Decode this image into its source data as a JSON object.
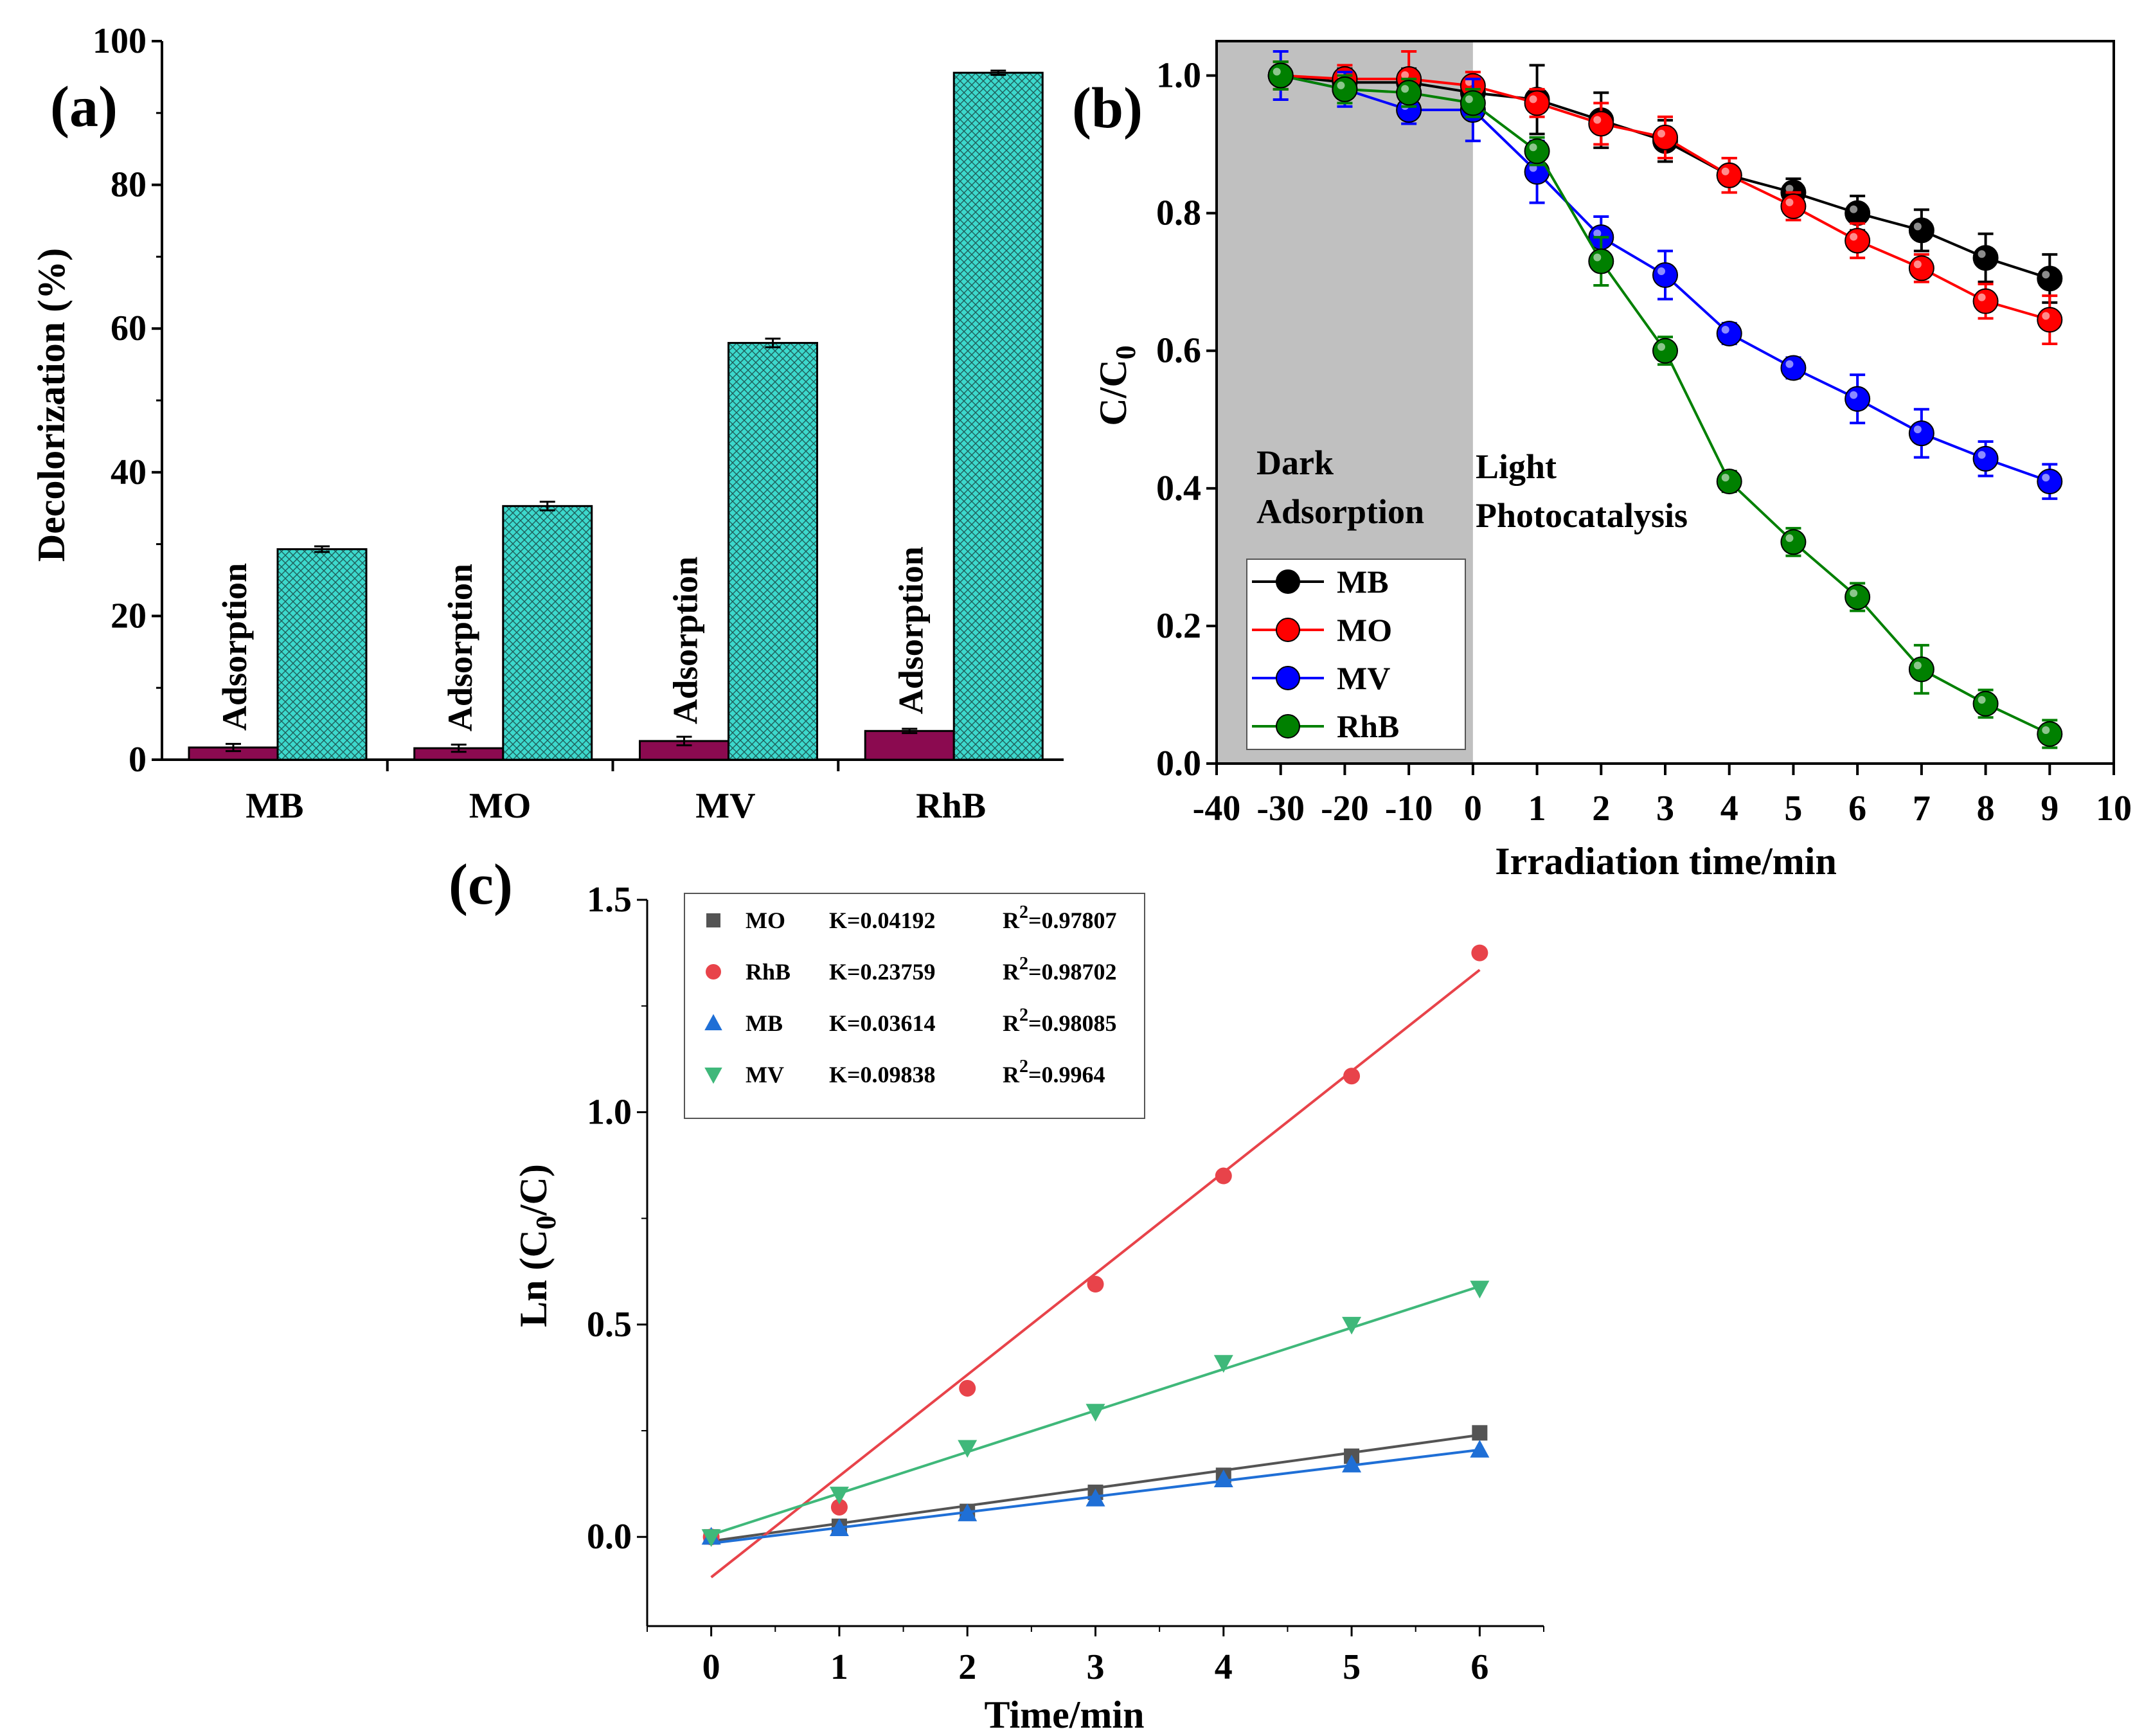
{
  "colors": {
    "MB": "#000000",
    "MO": "#ff0000",
    "MV": "#0000ff",
    "RhB": "#008000",
    "adsorption_bar": "#8b0a50",
    "photocatalysis_bar": "#3cd8cc",
    "dark_region": "#c0c0c0",
    "c_MO": "#545454",
    "c_RhB": "#e8434a",
    "c_MB": "#1f6fd6",
    "c_MV": "#3fb87a"
  },
  "chart_data": [
    {
      "panel": "(a)",
      "type": "bar",
      "categories": [
        "MB",
        "MO",
        "MV",
        "RhB"
      ],
      "series": [
        {
          "name": "Adsorption",
          "values": [
            1.7,
            1.6,
            2.6,
            4.0
          ],
          "err": [
            0.5,
            0.5,
            0.6,
            0.3
          ],
          "pattern": "solid"
        },
        {
          "values": [
            29.3,
            35.3,
            58.0,
            95.6
          ],
          "err": [
            0.4,
            0.6,
            0.6,
            0.3
          ],
          "pattern": "crosshatch"
        }
      ],
      "bar_annotations": [
        "Adsorption",
        "Adsorption",
        "Adsorption",
        "Adsorption"
      ],
      "ylabel": "Decolorization (%)",
      "ylim": [
        0,
        100
      ],
      "yticks": [
        "0",
        "20",
        "40",
        "60",
        "80",
        "100"
      ]
    },
    {
      "panel": "(b)",
      "type": "line",
      "x": [
        "-30",
        "-20",
        "-10",
        "0",
        "1",
        "2",
        "3",
        "4",
        "5",
        "6",
        "7",
        "8",
        "9"
      ],
      "x_ticks": [
        "-40",
        "-30",
        "-20",
        "-10",
        "0",
        "1",
        "2",
        "3",
        "4",
        "5",
        "6",
        "7",
        "8",
        "9",
        "10"
      ],
      "series": [
        {
          "name": "MB",
          "values": [
            1.0,
            0.99,
            0.99,
            0.975,
            0.965,
            0.935,
            0.905,
            0.855,
            0.83,
            0.8,
            0.775,
            0.735,
            0.705
          ],
          "err": [
            0.02,
            0.02,
            0.02,
            0.02,
            0.05,
            0.04,
            0.03,
            0.025,
            0.02,
            0.025,
            0.03,
            0.035,
            0.035
          ]
        },
        {
          "name": "MO",
          "values": [
            1.0,
            0.995,
            0.995,
            0.985,
            0.96,
            0.93,
            0.91,
            0.855,
            0.81,
            0.76,
            0.72,
            0.672,
            0.645
          ],
          "err": [
            0.02,
            0.02,
            0.04,
            0.02,
            0.02,
            0.03,
            0.03,
            0.025,
            0.02,
            0.025,
            0.02,
            0.025,
            0.035
          ]
        },
        {
          "name": "MV",
          "values": [
            1.0,
            0.98,
            0.95,
            0.95,
            0.86,
            0.765,
            0.71,
            0.625,
            0.575,
            0.53,
            0.48,
            0.443,
            0.41
          ],
          "err": [
            0.035,
            0.025,
            0.02,
            0.045,
            0.045,
            0.03,
            0.035,
            0.015,
            0.015,
            0.035,
            0.035,
            0.025,
            0.025
          ]
        },
        {
          "name": "RhB",
          "values": [
            1.0,
            0.98,
            0.975,
            0.96,
            0.89,
            0.73,
            0.6,
            0.41,
            0.322,
            0.242,
            0.137,
            0.087,
            0.043
          ],
          "err": [
            0.02,
            0.02,
            0.02,
            0.02,
            0.02,
            0.035,
            0.02,
            0.015,
            0.02,
            0.02,
            0.035,
            0.02,
            0.02
          ]
        }
      ],
      "xlabel": "Irradiation time/min",
      "ylabel": "C/C0",
      "ylim": [
        0,
        1.05
      ],
      "yticks": [
        "0.0",
        "0.2",
        "0.4",
        "0.6",
        "0.8",
        "1.0"
      ],
      "shaded_region": {
        "from": -40,
        "to": 0
      },
      "annotations": [
        "Dark",
        "Adsorption",
        "Light",
        "Photocatalysis"
      ],
      "legend": "lower-left"
    },
    {
      "panel": "(c)",
      "type": "scatter",
      "x": [
        0,
        1,
        2,
        3,
        4,
        5,
        6
      ],
      "series": [
        {
          "name": "MO",
          "marker": "square",
          "values": [
            0.0,
            0.025,
            0.06,
            0.105,
            0.145,
            0.19,
            0.245
          ],
          "K": "K=0.04192",
          "R2": "=0.97807",
          "fit": [
            -0.01,
            0.24
          ]
        },
        {
          "name": "RhB",
          "marker": "circle",
          "values": [
            0.0,
            0.07,
            0.35,
            0.595,
            0.85,
            1.085,
            1.375
          ],
          "K": "K=0.23759",
          "R2": "=0.98702",
          "fit": [
            -0.095,
            1.335
          ]
        },
        {
          "name": "MB",
          "marker": "triangle-up",
          "values": [
            0.0,
            0.02,
            0.055,
            0.09,
            0.135,
            0.17,
            0.205
          ],
          "K": "K=0.03614",
          "R2": "=0.98085",
          "fit": [
            -0.015,
            0.205
          ]
        },
        {
          "name": "MV",
          "marker": "triangle-down",
          "values": [
            0.0,
            0.1,
            0.21,
            0.295,
            0.41,
            0.5,
            0.585
          ],
          "K": "K=0.09838",
          "R2": "=0.9964",
          "fit": [
            0.005,
            0.59
          ]
        }
      ],
      "xlabel": "Time/min",
      "ylabel": "Ln (C0/C)",
      "xlim": [
        -0.5,
        6.5
      ],
      "ylim": [
        -0.21,
        1.5
      ],
      "yticks": [
        "0.0",
        "0.5",
        "1.0",
        "1.5"
      ],
      "xticks": [
        "0",
        "1",
        "2",
        "3",
        "4",
        "5",
        "6"
      ],
      "legend": "top-left"
    }
  ]
}
